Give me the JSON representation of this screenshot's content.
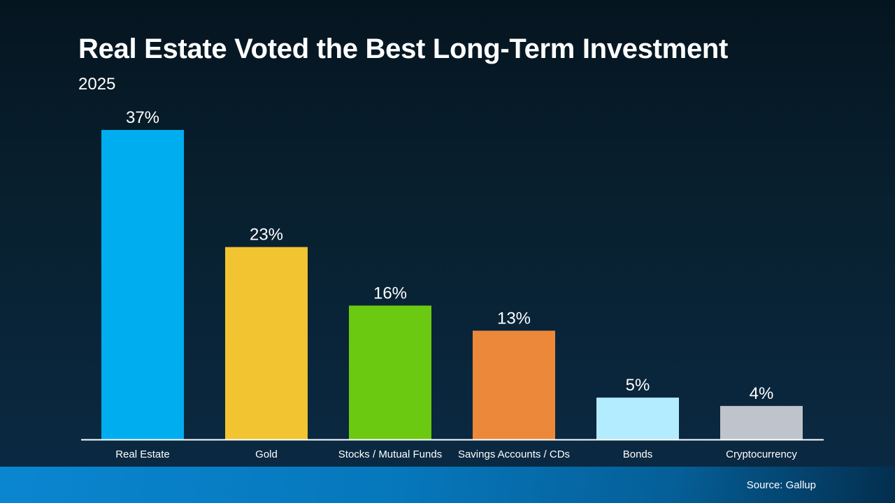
{
  "chart_data": {
    "type": "bar",
    "title": "Real Estate Voted the Best Long-Term Investment",
    "subtitle": "2025",
    "categories": [
      "Real Estate",
      "Gold",
      "Stocks / Mutual Funds",
      "Savings Accounts / CDs",
      "Bonds",
      "Cryptocurrency"
    ],
    "values": [
      37,
      23,
      16,
      13,
      5,
      4
    ],
    "data_labels": [
      "37%",
      "23%",
      "16%",
      "13%",
      "5%",
      "4%"
    ],
    "colors": [
      "#00aeef",
      "#f2c431",
      "#6cc912",
      "#ec883a",
      "#b3ebff",
      "#bfc3cb"
    ],
    "xlabel": "",
    "ylabel": "",
    "ylim": [
      0,
      37
    ],
    "grid": false,
    "legend": "none"
  },
  "footer": {
    "source": "Source: Gallup"
  }
}
